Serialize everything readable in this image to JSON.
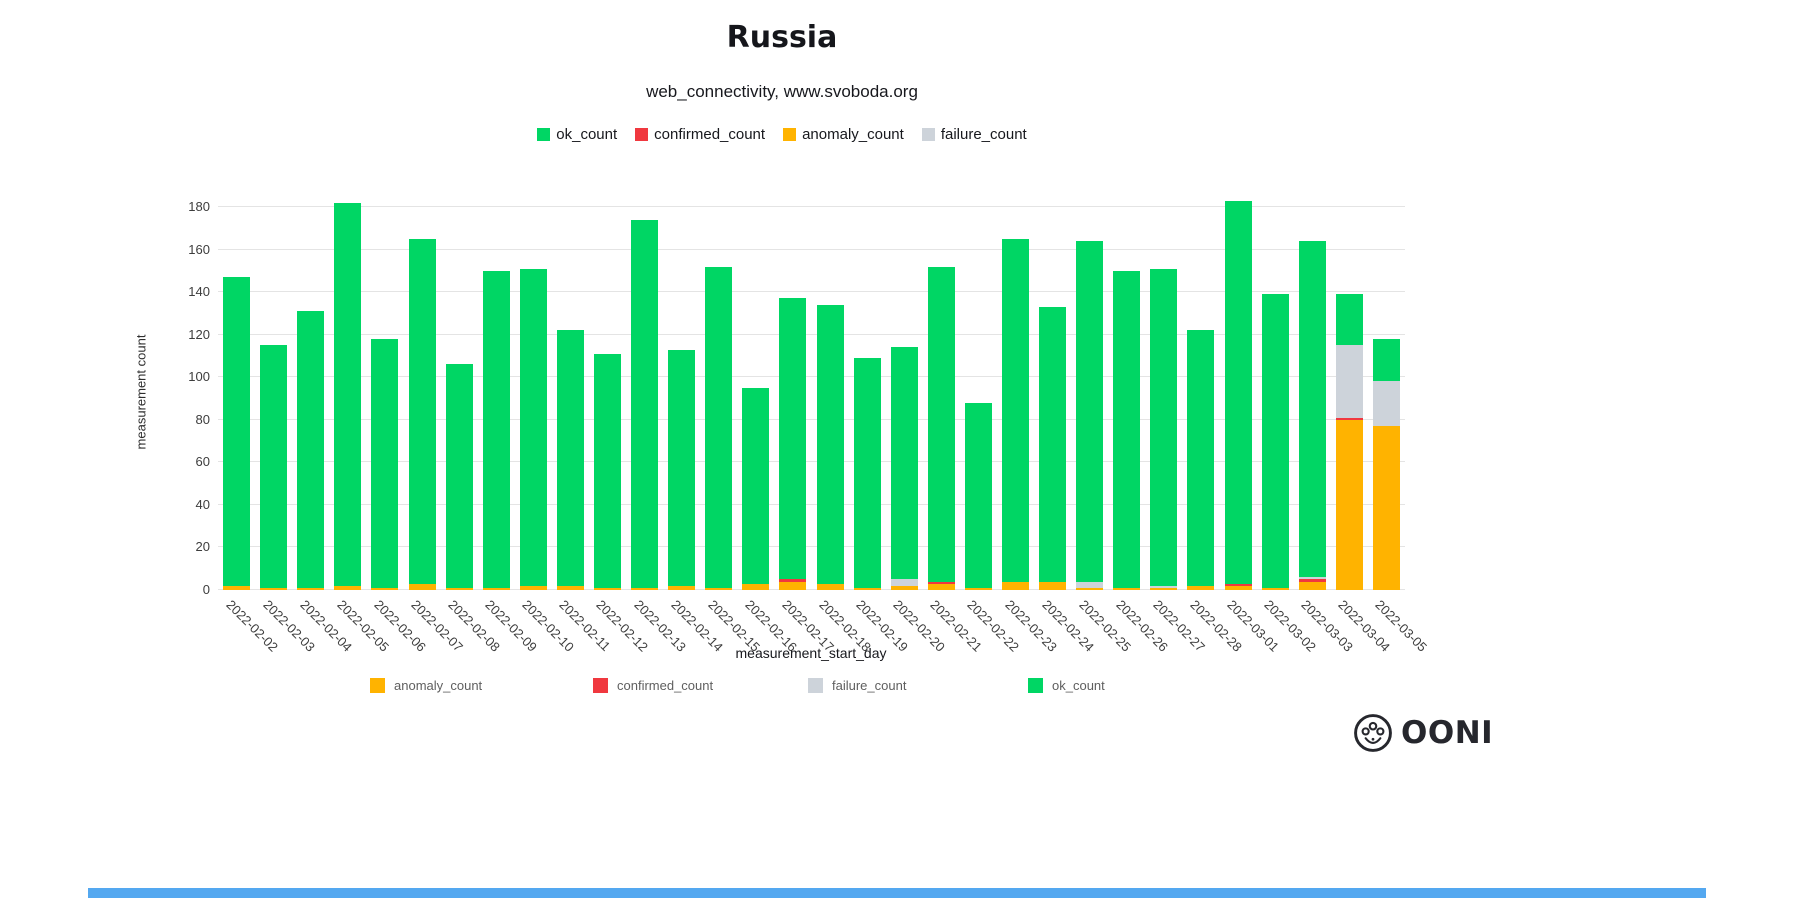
{
  "title": "Russia",
  "subtitle": "web_connectivity, www.svoboda.org",
  "colors": {
    "ok": "#00d664",
    "confirmed": "#f0383f",
    "anomaly": "#ffb300",
    "failure": "#cdd3da",
    "grid": "#e4e4e4",
    "footer_bar": "#54a8f0",
    "logo": "#26272d"
  },
  "top_legend": [
    {
      "label": "ok_count",
      "color_key": "ok"
    },
    {
      "label": "confirmed_count",
      "color_key": "confirmed"
    },
    {
      "label": "anomaly_count",
      "color_key": "anomaly"
    },
    {
      "label": "failure_count",
      "color_key": "failure"
    }
  ],
  "bottom_legend": [
    {
      "label": "anomaly_count",
      "color_key": "anomaly"
    },
    {
      "label": "confirmed_count",
      "color_key": "confirmed"
    },
    {
      "label": "failure_count",
      "color_key": "failure"
    },
    {
      "label": "ok_count",
      "color_key": "ok"
    }
  ],
  "chart_data": {
    "type": "bar",
    "stacked": true,
    "title": "Russia",
    "subtitle": "web_connectivity, www.svoboda.org",
    "xlabel": "measurement_start_day",
    "ylabel": "measurement count",
    "ylim": [
      0,
      190
    ],
    "yticks": [
      0,
      20,
      40,
      60,
      80,
      100,
      120,
      140,
      160,
      180
    ],
    "grid": true,
    "legend_position": "top",
    "categories": [
      "2022-02-02",
      "2022-02-03",
      "2022-02-04",
      "2022-02-05",
      "2022-02-06",
      "2022-02-07",
      "2022-02-08",
      "2022-02-09",
      "2022-02-10",
      "2022-02-11",
      "2022-02-12",
      "2022-02-13",
      "2022-02-14",
      "2022-02-15",
      "2022-02-16",
      "2022-02-17",
      "2022-02-18",
      "2022-02-19",
      "2022-02-20",
      "2022-02-21",
      "2022-02-22",
      "2022-02-23",
      "2022-02-24",
      "2022-02-25",
      "2022-02-26",
      "2022-02-27",
      "2022-02-28",
      "2022-03-01",
      "2022-03-02",
      "2022-03-03",
      "2022-03-04",
      "2022-03-05"
    ],
    "series": [
      {
        "name": "anomaly_count",
        "color": "#ffb300",
        "values": [
          2,
          1,
          1,
          2,
          1,
          3,
          1,
          1,
          2,
          2,
          1,
          1,
          2,
          1,
          3,
          4,
          3,
          1,
          2,
          3,
          1,
          4,
          4,
          1,
          1,
          1,
          2,
          2,
          1,
          4,
          80,
          77
        ]
      },
      {
        "name": "confirmed_count",
        "color": "#f0383f",
        "values": [
          0,
          0,
          0,
          0,
          0,
          0,
          0,
          0,
          0,
          0,
          0,
          0,
          0,
          0,
          0,
          1,
          0,
          0,
          0,
          1,
          0,
          0,
          0,
          0,
          0,
          0,
          0,
          1,
          0,
          1,
          1,
          0
        ]
      },
      {
        "name": "failure_count",
        "color": "#cdd3da",
        "values": [
          0,
          0,
          0,
          0,
          0,
          0,
          0,
          0,
          0,
          0,
          0,
          0,
          0,
          0,
          0,
          0,
          0,
          0,
          3,
          0,
          0,
          0,
          0,
          3,
          0,
          1,
          0,
          0,
          0,
          1,
          34,
          21
        ]
      },
      {
        "name": "ok_count",
        "color": "#00d664",
        "values": [
          145,
          114,
          130,
          180,
          117,
          162,
          105,
          149,
          149,
          120,
          110,
          173,
          111,
          151,
          92,
          132,
          131,
          108,
          109,
          148,
          87,
          161,
          129,
          160,
          149,
          149,
          120,
          180,
          138,
          158,
          24,
          20
        ]
      }
    ]
  },
  "logo": {
    "text": "OONI"
  }
}
